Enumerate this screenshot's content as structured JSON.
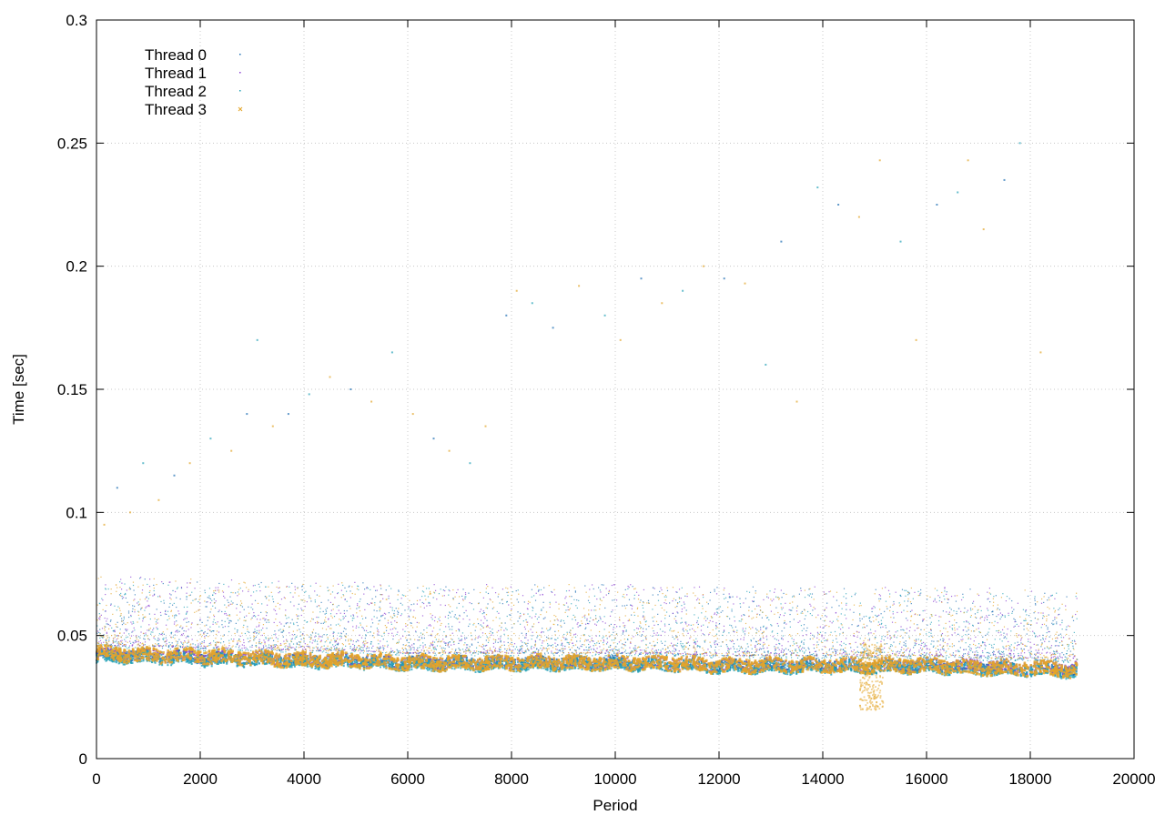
{
  "chart_data": {
    "type": "scatter",
    "title": "",
    "xlabel": "Period",
    "ylabel": "Time [sec]",
    "xlim": [
      0,
      20000
    ],
    "ylim": [
      0,
      0.3
    ],
    "xticks": [
      0,
      2000,
      4000,
      6000,
      8000,
      10000,
      12000,
      14000,
      16000,
      18000,
      20000
    ],
    "yticks": [
      0,
      0.05,
      0.1,
      0.15,
      0.2,
      0.25,
      0.3
    ],
    "xtick_labels": [
      "0",
      "2000",
      "4000",
      "6000",
      "8000",
      "10000",
      "12000",
      "14000",
      "16000",
      "18000",
      "20000"
    ],
    "ytick_labels": [
      "0",
      "0.05",
      "0.1",
      "0.15",
      "0.2",
      "0.25",
      "0.3"
    ],
    "grid": true,
    "legend_position": "top-left",
    "series": [
      {
        "name": "Thread 0",
        "color": "#1f6fb4",
        "marker": "dot",
        "x": [
          0,
          1000,
          2000,
          3000,
          4000,
          5000,
          6000,
          7000,
          8000,
          9000,
          10000,
          11000,
          12000,
          13000,
          14000,
          15000,
          16000,
          17000,
          18000,
          18900
        ],
        "y": [
          0.042,
          0.042,
          0.041,
          0.04,
          0.04,
          0.04,
          0.039,
          0.039,
          0.039,
          0.039,
          0.039,
          0.038,
          0.038,
          0.038,
          0.038,
          0.037,
          0.038,
          0.037,
          0.036,
          0.036
        ]
      },
      {
        "name": "Thread 1",
        "color": "#8a3fd1",
        "marker": "dot",
        "x": [
          0,
          1000,
          2000,
          3000,
          4000,
          5000,
          6000,
          7000,
          8000,
          9000,
          10000,
          11000,
          12000,
          13000,
          14000,
          15000,
          16000,
          17000,
          18000,
          18900
        ],
        "y": [
          0.042,
          0.042,
          0.041,
          0.041,
          0.04,
          0.04,
          0.039,
          0.039,
          0.039,
          0.039,
          0.039,
          0.039,
          0.038,
          0.038,
          0.038,
          0.038,
          0.038,
          0.038,
          0.037,
          0.037
        ]
      },
      {
        "name": "Thread 2",
        "color": "#27a3b8",
        "marker": "dot",
        "x": [
          0,
          1000,
          2000,
          3000,
          4000,
          5000,
          6000,
          7000,
          8000,
          9000,
          10000,
          11000,
          12000,
          13000,
          14000,
          15000,
          16000,
          17000,
          18000,
          18900
        ],
        "y": [
          0.041,
          0.041,
          0.04,
          0.04,
          0.039,
          0.039,
          0.038,
          0.038,
          0.038,
          0.038,
          0.038,
          0.038,
          0.037,
          0.037,
          0.037,
          0.037,
          0.037,
          0.036,
          0.036,
          0.035
        ]
      },
      {
        "name": "Thread 3",
        "color": "#e3a52a",
        "marker": "x",
        "x": [
          0,
          1000,
          2000,
          3000,
          4000,
          5000,
          6000,
          7000,
          8000,
          9000,
          10000,
          11000,
          12000,
          13000,
          14000,
          15000,
          16000,
          17000,
          18000,
          18900
        ],
        "y": [
          0.043,
          0.042,
          0.042,
          0.041,
          0.04,
          0.04,
          0.039,
          0.039,
          0.039,
          0.039,
          0.039,
          0.039,
          0.038,
          0.038,
          0.038,
          0.038,
          0.038,
          0.037,
          0.037,
          0.036
        ]
      }
    ],
    "outliers": {
      "x": [
        150,
        400,
        650,
        900,
        1200,
        1500,
        1800,
        2200,
        2600,
        2900,
        3100,
        3400,
        3700,
        4100,
        4500,
        4900,
        5300,
        5700,
        6100,
        6500,
        6800,
        7200,
        7500,
        7900,
        8100,
        8400,
        8800,
        9300,
        9800,
        10100,
        10500,
        10900,
        11300,
        11700,
        12100,
        12500,
        12900,
        13200,
        13500,
        13900,
        14300,
        14700,
        15100,
        15500,
        15800,
        16200,
        16600,
        16800,
        17100,
        17500,
        17800,
        18200
      ],
      "y": [
        0.095,
        0.11,
        0.1,
        0.12,
        0.105,
        0.115,
        0.12,
        0.13,
        0.125,
        0.14,
        0.17,
        0.135,
        0.14,
        0.148,
        0.155,
        0.15,
        0.145,
        0.165,
        0.14,
        0.13,
        0.125,
        0.12,
        0.135,
        0.18,
        0.19,
        0.185,
        0.175,
        0.192,
        0.18,
        0.17,
        0.195,
        0.185,
        0.19,
        0.2,
        0.195,
        0.193,
        0.16,
        0.21,
        0.145,
        0.232,
        0.225,
        0.22,
        0.243,
        0.21,
        0.17,
        0.225,
        0.23,
        0.243,
        0.215,
        0.235,
        0.25,
        0.165
      ],
      "colors": [
        "#e3a52a",
        "#1f6fb4",
        "#e3a52a",
        "#27a3b8",
        "#e3a52a",
        "#1f6fb4",
        "#e3a52a",
        "#27a3b8",
        "#e3a52a",
        "#1f6fb4",
        "#27a3b8",
        "#e3a52a",
        "#1f6fb4",
        "#27a3b8",
        "#e3a52a",
        "#1f6fb4",
        "#e3a52a",
        "#27a3b8",
        "#e3a52a",
        "#1f6fb4",
        "#e3a52a",
        "#27a3b8",
        "#e3a52a",
        "#1f6fb4",
        "#e3a52a",
        "#27a3b8",
        "#1f6fb4",
        "#e3a52a",
        "#27a3b8",
        "#e3a52a",
        "#1f6fb4",
        "#e3a52a",
        "#27a3b8",
        "#e3a52a",
        "#1f6fb4",
        "#e3a52a",
        "#27a3b8",
        "#1f6fb4",
        "#e3a52a",
        "#27a3b8",
        "#1f6fb4",
        "#e3a52a",
        "#e3a52a",
        "#27a3b8",
        "#e3a52a",
        "#1f6fb4",
        "#27a3b8",
        "#e3a52a",
        "#e3a52a",
        "#1f6fb4",
        "#27a3b8",
        "#e3a52a"
      ]
    }
  }
}
